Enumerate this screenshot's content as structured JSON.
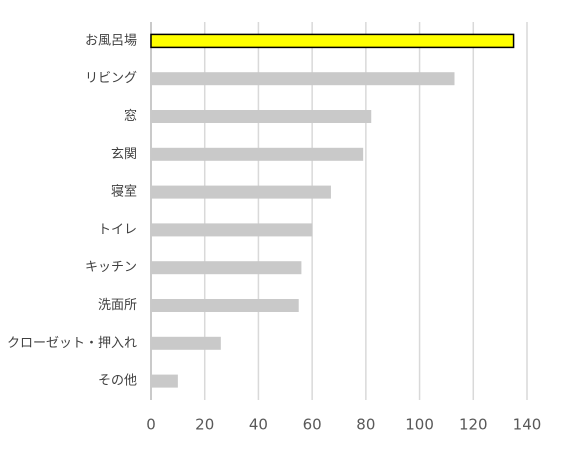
{
  "chart_data": {
    "type": "barh",
    "categories": [
      "お風呂場",
      "リビング",
      "窓",
      "玄関",
      "寝室",
      "トイレ",
      "キッチン",
      "洗面所",
      "クローゼット・押入れ",
      "その他"
    ],
    "values": [
      135,
      113,
      82,
      79,
      67,
      60,
      56,
      55,
      26,
      10
    ],
    "colors": [
      "#ffff00",
      "#c9c9c9",
      "#c9c9c9",
      "#c9c9c9",
      "#c9c9c9",
      "#c9c9c9",
      "#c9c9c9",
      "#c9c9c9",
      "#c9c9c9",
      "#c9c9c9"
    ],
    "edgecolors": [
      "#000000",
      "none",
      "none",
      "none",
      "none",
      "none",
      "none",
      "none",
      "none",
      "none"
    ],
    "xlim": [
      0,
      140
    ],
    "xticks": [
      0,
      20,
      40,
      60,
      80,
      100,
      120,
      140
    ],
    "grid": true
  }
}
